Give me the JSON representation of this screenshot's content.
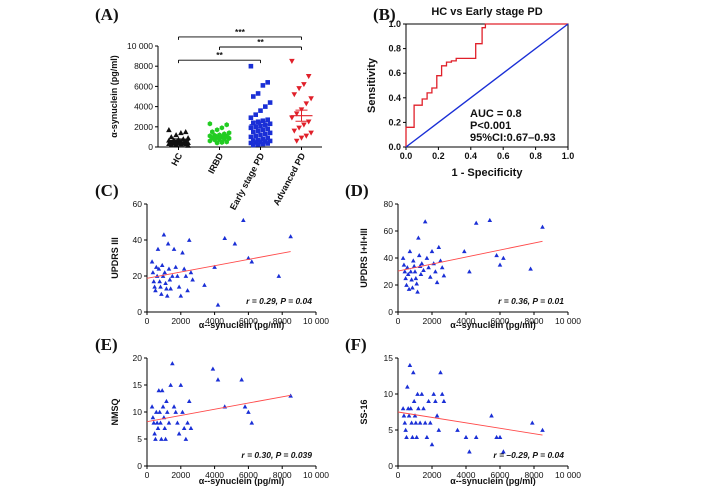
{
  "chart_data": [
    {
      "panel": "(A)",
      "type": "scatter",
      "ylabel": "α-synuclein (pg/ml)",
      "ylim": [
        0,
        10000
      ],
      "yticks": [
        0,
        2000,
        4000,
        6000,
        8000,
        10000
      ],
      "ytick_labels": [
        "0",
        "2000",
        "4000",
        "6000",
        "8000",
        "10 000"
      ],
      "categories": [
        "HC",
        "IRBD",
        "Early stage PD",
        "Advanced PD"
      ],
      "colors": [
        "#111111",
        "#22cc22",
        "#1a2fd6",
        "#e0202a"
      ],
      "markers": [
        "triangle",
        "hexagon",
        "square",
        "triangle-down"
      ],
      "series": [
        {
          "category": "HC",
          "values": [
            1700,
            1500,
            1400,
            1200,
            1000,
            900,
            800,
            750,
            700,
            650,
            600,
            550,
            500,
            450,
            420,
            400,
            380,
            350,
            320,
            300,
            280,
            250,
            200,
            150
          ],
          "mean": 650,
          "sem": 150
        },
        {
          "category": "IRBD",
          "values": [
            2300,
            2200,
            1900,
            1700,
            1500,
            1400,
            1300,
            1200,
            1150,
            1100,
            1050,
            1000,
            950,
            900,
            850,
            800,
            750,
            700,
            600,
            500,
            450,
            400
          ],
          "mean": 1050,
          "sem": 150
        },
        {
          "category": "Early stage PD",
          "values": [
            8000,
            6400,
            6100,
            5300,
            5000,
            4400,
            4000,
            3600,
            3200,
            2900,
            2700,
            2600,
            2500,
            2400,
            2300,
            2200,
            2100,
            2000,
            1900,
            1800,
            1700,
            1600,
            1500,
            1400,
            1300,
            1200,
            1100,
            1000,
            900,
            800,
            700,
            650,
            600,
            550,
            500,
            450,
            400,
            350,
            300,
            250,
            200
          ],
          "mean": 2200,
          "sem": 300
        },
        {
          "category": "Advanced PD",
          "values": [
            8500,
            7000,
            6200,
            5800,
            5200,
            4800,
            4300,
            3700,
            3300,
            2900,
            2500,
            2200,
            1900,
            1600,
            1400,
            1100,
            900,
            600
          ],
          "mean": 3100,
          "sem": 550
        }
      ],
      "annotations": [
        {
          "text": "***",
          "from": "HC",
          "to": "Advanced PD",
          "y": 10900
        },
        {
          "text": "**",
          "from": "IRBD",
          "to": "Advanced PD",
          "y": 9900
        },
        {
          "text": "**",
          "from": "HC",
          "to": "Early stage PD",
          "y": 8600
        }
      ]
    },
    {
      "panel": "(B)",
      "type": "line",
      "title": "HC vs Early stage PD",
      "xlabel": "1 - Specificity",
      "ylabel": "Sensitivity",
      "xlim": [
        0,
        1
      ],
      "ylim": [
        0,
        1
      ],
      "ticks": [
        0,
        0.2,
        0.4,
        0.6,
        0.8,
        1
      ],
      "tick_labels": [
        "0.0",
        "0.2",
        "0.4",
        "0.6",
        "0.8",
        "1.0"
      ],
      "series": [
        {
          "role": "roc",
          "color": "#e0202a",
          "x": [
            0,
            0,
            0.05,
            0.05,
            0.1,
            0.1,
            0.13,
            0.13,
            0.16,
            0.16,
            0.19,
            0.19,
            0.22,
            0.22,
            0.25,
            0.25,
            0.28,
            0.28,
            0.31,
            0.31,
            0.43,
            0.43,
            0.47,
            0.47,
            0.49,
            0.49,
            1
          ],
          "y": [
            0,
            0.16,
            0.16,
            0.34,
            0.34,
            0.39,
            0.39,
            0.44,
            0.44,
            0.48,
            0.48,
            0.58,
            0.58,
            0.66,
            0.66,
            0.69,
            0.69,
            0.7,
            0.7,
            0.72,
            0.72,
            0.84,
            0.84,
            0.97,
            0.97,
            1.0,
            1.0
          ]
        },
        {
          "role": "reference",
          "color": "#1a2fd6",
          "x": [
            0,
            1
          ],
          "y": [
            0,
            1
          ]
        }
      ],
      "stats": [
        "AUC = 0.8",
        "P<0.001",
        "95%CI:0.67–0.93"
      ]
    },
    {
      "panel": "(C)",
      "type": "scatter",
      "xlabel": "α--synuclein (pg/ml)",
      "ylabel": "UPDRS III",
      "xlim": [
        0,
        10000
      ],
      "ylim": [
        0,
        60
      ],
      "xticks": [
        0,
        2000,
        4000,
        6000,
        8000,
        10000
      ],
      "xtick_labels": [
        "0",
        "2000",
        "4000",
        "6000",
        "8000",
        "10 000"
      ],
      "yticks": [
        0,
        20,
        40,
        60
      ],
      "stat": "r = 0.29, P = 0.04",
      "points": [
        [
          300,
          28
        ],
        [
          350,
          22
        ],
        [
          400,
          17
        ],
        [
          450,
          14
        ],
        [
          500,
          12
        ],
        [
          550,
          25
        ],
        [
          600,
          20
        ],
        [
          650,
          35
        ],
        [
          700,
          24
        ],
        [
          750,
          17
        ],
        [
          800,
          14
        ],
        [
          850,
          10
        ],
        [
          900,
          26
        ],
        [
          950,
          20
        ],
        [
          1000,
          43
        ],
        [
          1050,
          22
        ],
        [
          1100,
          16
        ],
        [
          1150,
          13
        ],
        [
          1200,
          9
        ],
        [
          1250,
          38
        ],
        [
          1300,
          24
        ],
        [
          1350,
          18
        ],
        [
          1400,
          13
        ],
        [
          1500,
          20
        ],
        [
          1600,
          35
        ],
        [
          1700,
          25
        ],
        [
          1800,
          20
        ],
        [
          1900,
          14
        ],
        [
          2000,
          9
        ],
        [
          2100,
          33
        ],
        [
          2200,
          24
        ],
        [
          2300,
          20
        ],
        [
          2400,
          12
        ],
        [
          2500,
          40
        ],
        [
          2600,
          22
        ],
        [
          2700,
          18
        ],
        [
          3400,
          15
        ],
        [
          4000,
          25
        ],
        [
          4200,
          4
        ],
        [
          4600,
          41
        ],
        [
          5200,
          38
        ],
        [
          5700,
          51
        ],
        [
          6000,
          30
        ],
        [
          6200,
          28
        ],
        [
          7800,
          20
        ],
        [
          8500,
          42
        ]
      ],
      "trend": {
        "x": [
          0,
          8500
        ],
        "y": [
          18.7,
          33.6
        ]
      }
    },
    {
      "panel": "(D)",
      "type": "scatter",
      "xlabel": "α--synuclein (pg/ml)",
      "ylabel": "UPDRS I+II+III",
      "xlim": [
        0,
        10000
      ],
      "ylim": [
        0,
        80
      ],
      "xticks": [
        0,
        2000,
        4000,
        6000,
        8000,
        10000
      ],
      "xtick_labels": [
        "0",
        "2000",
        "4000",
        "6000",
        "8000",
        "10 000"
      ],
      "yticks": [
        0,
        20,
        40,
        60,
        80
      ],
      "stat": "r = 0.36, P = 0.01",
      "points": [
        [
          300,
          40
        ],
        [
          350,
          35
        ],
        [
          400,
          30
        ],
        [
          450,
          25
        ],
        [
          500,
          20
        ],
        [
          550,
          33
        ],
        [
          600,
          28
        ],
        [
          650,
          17
        ],
        [
          700,
          45
        ],
        [
          750,
          30
        ],
        [
          800,
          24
        ],
        [
          850,
          18
        ],
        [
          900,
          38
        ],
        [
          950,
          34
        ],
        [
          1000,
          30
        ],
        [
          1050,
          25
        ],
        [
          1100,
          21
        ],
        [
          1150,
          15
        ],
        [
          1200,
          55
        ],
        [
          1250,
          42
        ],
        [
          1300,
          34
        ],
        [
          1350,
          28
        ],
        [
          1400,
          36
        ],
        [
          1500,
          31
        ],
        [
          1600,
          67
        ],
        [
          1700,
          40
        ],
        [
          1800,
          33
        ],
        [
          1900,
          26
        ],
        [
          2000,
          45
        ],
        [
          2100,
          36
        ],
        [
          2200,
          30
        ],
        [
          2300,
          22
        ],
        [
          2400,
          48
        ],
        [
          2500,
          38
        ],
        [
          2600,
          33
        ],
        [
          2700,
          27
        ],
        [
          3900,
          45
        ],
        [
          4200,
          30
        ],
        [
          4600,
          66
        ],
        [
          5400,
          68
        ],
        [
          5800,
          42
        ],
        [
          6000,
          35
        ],
        [
          6200,
          40
        ],
        [
          7800,
          32
        ],
        [
          8500,
          63
        ]
      ],
      "trend": {
        "x": [
          0,
          8500
        ],
        "y": [
          30.3,
          52.4
        ]
      }
    },
    {
      "panel": "(E)",
      "type": "scatter",
      "xlabel": "α--synuclein (pg/ml)",
      "ylabel": "NMSQ",
      "xlim": [
        0,
        10000
      ],
      "ylim": [
        0,
        20
      ],
      "xticks": [
        0,
        2000,
        4000,
        6000,
        8000,
        10000
      ],
      "xtick_labels": [
        "0",
        "2000",
        "4000",
        "6000",
        "8000",
        "10 000"
      ],
      "yticks": [
        0,
        5,
        10,
        15,
        20
      ],
      "stat": "r = 0.30, P = 0.039",
      "points": [
        [
          300,
          11
        ],
        [
          350,
          9
        ],
        [
          400,
          8
        ],
        [
          450,
          6
        ],
        [
          500,
          5
        ],
        [
          550,
          10
        ],
        [
          600,
          8
        ],
        [
          650,
          7
        ],
        [
          700,
          14
        ],
        [
          750,
          10
        ],
        [
          800,
          8
        ],
        [
          850,
          5
        ],
        [
          900,
          14
        ],
        [
          950,
          11
        ],
        [
          1000,
          9
        ],
        [
          1050,
          7
        ],
        [
          1100,
          5
        ],
        [
          1150,
          12
        ],
        [
          1200,
          10
        ],
        [
          1300,
          8
        ],
        [
          1400,
          15
        ],
        [
          1500,
          19
        ],
        [
          1600,
          11
        ],
        [
          1700,
          10
        ],
        [
          1800,
          8
        ],
        [
          1900,
          6
        ],
        [
          2000,
          15
        ],
        [
          2100,
          10
        ],
        [
          2200,
          7
        ],
        [
          2300,
          5
        ],
        [
          2400,
          8
        ],
        [
          2500,
          12
        ],
        [
          2600,
          7
        ],
        [
          3900,
          18
        ],
        [
          4200,
          16
        ],
        [
          4600,
          11
        ],
        [
          5600,
          16
        ],
        [
          5800,
          11
        ],
        [
          6000,
          10
        ],
        [
          6200,
          8
        ],
        [
          8500,
          13
        ]
      ],
      "trend": {
        "x": [
          0,
          8500
        ],
        "y": [
          8.2,
          13.1
        ]
      }
    },
    {
      "panel": "(F)",
      "type": "scatter",
      "xlabel": "α--synuclein (pg/ml)",
      "ylabel": "SS-16",
      "xlim": [
        0,
        10000
      ],
      "ylim": [
        0,
        15
      ],
      "xticks": [
        0,
        2000,
        4000,
        6000,
        8000,
        10000
      ],
      "xtick_labels": [
        "0",
        "2000",
        "4000",
        "6000",
        "8000",
        "10 000"
      ],
      "yticks": [
        0,
        5,
        10,
        15
      ],
      "stat": "r = –0.29, P = 0.04",
      "points": [
        [
          300,
          8
        ],
        [
          350,
          7
        ],
        [
          400,
          6
        ],
        [
          450,
          5
        ],
        [
          500,
          4
        ],
        [
          550,
          11
        ],
        [
          600,
          8
        ],
        [
          650,
          7
        ],
        [
          700,
          14
        ],
        [
          750,
          8
        ],
        [
          800,
          6
        ],
        [
          850,
          4
        ],
        [
          900,
          13
        ],
        [
          950,
          9
        ],
        [
          1000,
          7
        ],
        [
          1050,
          6
        ],
        [
          1100,
          4
        ],
        [
          1150,
          10
        ],
        [
          1200,
          8
        ],
        [
          1300,
          6
        ],
        [
          1400,
          10
        ],
        [
          1500,
          8
        ],
        [
          1600,
          6
        ],
        [
          1700,
          4
        ],
        [
          1800,
          9
        ],
        [
          1900,
          6
        ],
        [
          2000,
          3
        ],
        [
          2100,
          10
        ],
        [
          2200,
          9
        ],
        [
          2300,
          7
        ],
        [
          2400,
          5
        ],
        [
          2500,
          13
        ],
        [
          2600,
          10
        ],
        [
          2700,
          9
        ],
        [
          3500,
          5
        ],
        [
          4000,
          4
        ],
        [
          4200,
          2
        ],
        [
          4600,
          4
        ],
        [
          5500,
          7
        ],
        [
          5800,
          4
        ],
        [
          6000,
          4
        ],
        [
          6200,
          2
        ],
        [
          7900,
          6
        ],
        [
          8500,
          5
        ]
      ],
      "trend": {
        "x": [
          0,
          8500
        ],
        "y": [
          7.5,
          4.3
        ]
      }
    }
  ]
}
